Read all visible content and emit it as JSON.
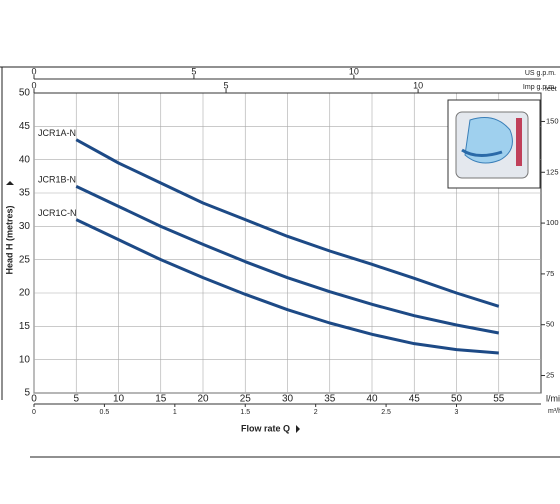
{
  "chart_data": {
    "type": "line",
    "xlabel": "Flow rate Q",
    "ylabel": "Head H (metres)",
    "xunit": "l/min",
    "x": [
      5,
      10,
      15,
      20,
      25,
      30,
      35,
      40,
      45,
      50,
      55
    ],
    "xlim": [
      0,
      60
    ],
    "xticks": [
      0,
      5,
      10,
      15,
      20,
      25,
      30,
      35,
      40,
      45,
      50,
      55
    ],
    "ylim": [
      5,
      50
    ],
    "yticks": [
      5,
      10,
      15,
      20,
      25,
      30,
      35,
      40,
      45,
      50
    ],
    "grid": true,
    "series": [
      {
        "name": "JCR1A-N",
        "color": "#1d4a86",
        "values": [
          43,
          39.5,
          36.5,
          33.5,
          31,
          28.5,
          26.3,
          24.3,
          22.2,
          20,
          18
        ]
      },
      {
        "name": "JCR1B-N",
        "color": "#1d4a86",
        "values": [
          36,
          33,
          30,
          27.3,
          24.7,
          22.3,
          20.2,
          18.3,
          16.6,
          15.2,
          14
        ]
      },
      {
        "name": "JCR1C-N",
        "color": "#1d4a86",
        "values": [
          31,
          28,
          25,
          22.3,
          19.8,
          17.5,
          15.5,
          13.8,
          12.4,
          11.5,
          11
        ]
      }
    ],
    "secondary_axes": [
      {
        "side": "top",
        "label": "US g.p.m.",
        "lim": [
          0,
          15.85
        ],
        "ticks": [
          0,
          5,
          10
        ]
      },
      {
        "side": "top",
        "label": "Imp g.p.m.",
        "lim": [
          0,
          13.2
        ],
        "ticks": [
          0,
          5,
          10
        ]
      },
      {
        "side": "bottom",
        "label": "m³/h",
        "lim": [
          0,
          3.6
        ],
        "ticks": [
          0,
          0.5,
          1,
          1.5,
          2,
          2.5,
          3
        ]
      },
      {
        "side": "right",
        "label": "feet",
        "lim": [
          16.4,
          164
        ],
        "ticks": [
          25,
          50,
          75,
          100,
          125,
          150
        ]
      }
    ]
  }
}
